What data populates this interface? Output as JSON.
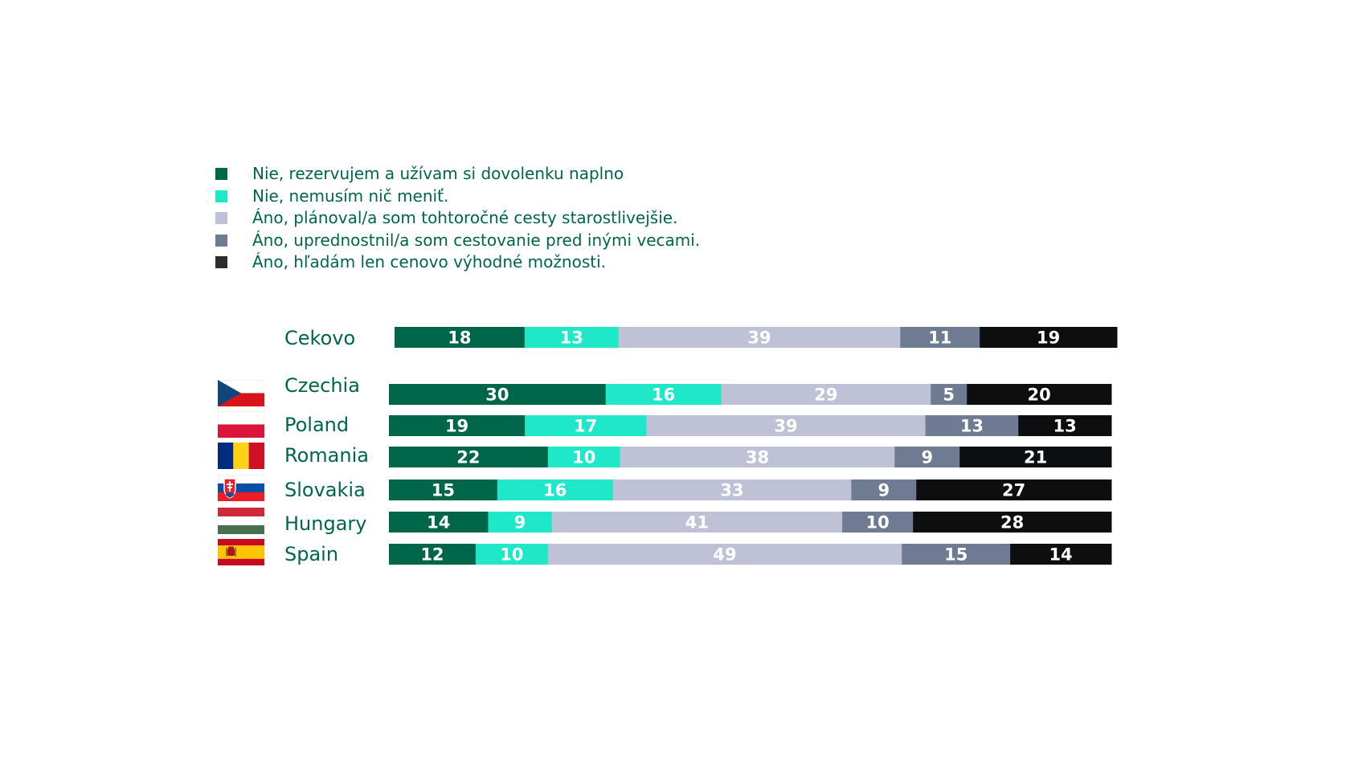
{
  "colors": {
    "dark_green": "#00664a",
    "teal": "#1ee8c8",
    "light_gray": "#bfc2d6",
    "slate": "#6e7b93",
    "black": "#0d0e10",
    "label_green": "#00664a"
  },
  "legend": [
    {
      "label": "Nie, rezervujem a užívam si dovolenku naplno",
      "color": "#00664a"
    },
    {
      "label": "Nie, nemusím nič meniť.",
      "color": "#1ee8c8"
    },
    {
      "label": "Áno, plánoval/a som tohtoročné cesty starostlivejšie.",
      "color": "#bfc2d6"
    },
    {
      "label": "Áno, uprednostnil/a som cestovanie pred inými vecami.",
      "color": "#6e7b93"
    },
    {
      "label": "Áno, hľadám len cenovo výhodné možnosti.",
      "color": "#2a2c30"
    }
  ],
  "flags": [
    "flag-czechia-icon",
    "flag-poland-icon",
    "flag-romania-icon",
    "flag-slovakia-icon",
    "flag-hungary-icon",
    "flag-spain-icon"
  ],
  "chart_data": {
    "type": "bar",
    "orientation": "horizontal",
    "stacked": true,
    "percent_stacked": true,
    "categories": [
      "Cekovo",
      "Czechia",
      "Poland",
      "Romania",
      "Slovakia",
      "Hungary",
      "Spain"
    ],
    "series": [
      {
        "name": "Nie, rezervujem a užívam si dovolenku naplno",
        "color": "#00664a",
        "label_color": "#ffffff",
        "values": [
          18,
          30,
          19,
          22,
          15,
          14,
          12
        ]
      },
      {
        "name": "Nie, nemusím nič meniť.",
        "color": "#1ee8c8",
        "label_color": "#ffffff",
        "values": [
          13,
          16,
          17,
          10,
          16,
          9,
          10
        ]
      },
      {
        "name": "Áno, plánoval/a som tohtoročné cesty starostlivejšie.",
        "color": "#bfc2d6",
        "label_color": "#ffffff",
        "values": [
          39,
          29,
          39,
          38,
          33,
          41,
          49
        ]
      },
      {
        "name": "Áno, uprednostnil/a som cestovanie pred inými vecami.",
        "color": "#6e7b93",
        "label_color": "#ffffff",
        "values": [
          11,
          5,
          13,
          9,
          9,
          10,
          15
        ]
      },
      {
        "name": "Áno, hľadám len cenovo výhodné možnosti.",
        "color": "#0d0e10",
        "label_color": "#ffffff",
        "values": [
          19,
          20,
          13,
          21,
          27,
          28,
          14
        ]
      }
    ],
    "data_labels": true,
    "legend_position": "top-left",
    "grid": false
  }
}
